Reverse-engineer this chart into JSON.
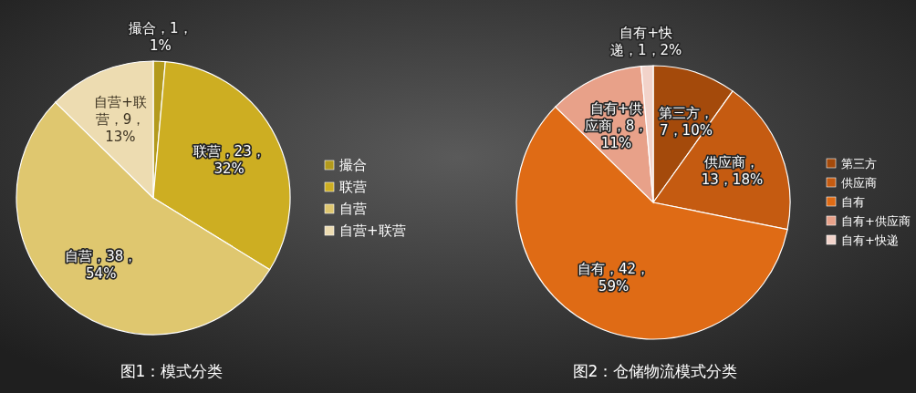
{
  "chart_data": [
    {
      "type": "pie",
      "title": "图1：模式分类",
      "categories": [
        "撮合",
        "联营",
        "自营",
        "自营+联营"
      ],
      "values": [
        1,
        23,
        38,
        9
      ],
      "colors": [
        "#b39a1c",
        "#cdae22",
        "#dfc76f",
        "#eddcb1"
      ],
      "value_labels": [
        "撮合，1，1%",
        "联营，23，32%",
        "自营，38，54%",
        "自营+联营，9，13%"
      ],
      "legend": "right"
    },
    {
      "type": "pie",
      "title": "图2：仓储物流模式分类",
      "categories": [
        "第三方",
        "供应商",
        "自有",
        "自有+供应商",
        "自有+快递"
      ],
      "values": [
        7,
        13,
        42,
        8,
        1
      ],
      "colors": [
        "#a44a0b",
        "#c55b11",
        "#df6b15",
        "#e8a189",
        "#f2d3ca"
      ],
      "value_labels": [
        "第三方，7，10%",
        "供应商，13，18%",
        "自有，42，59%",
        "自有+供应商，8，11%",
        "自有+快递，1，2%"
      ],
      "legend": "right"
    }
  ]
}
